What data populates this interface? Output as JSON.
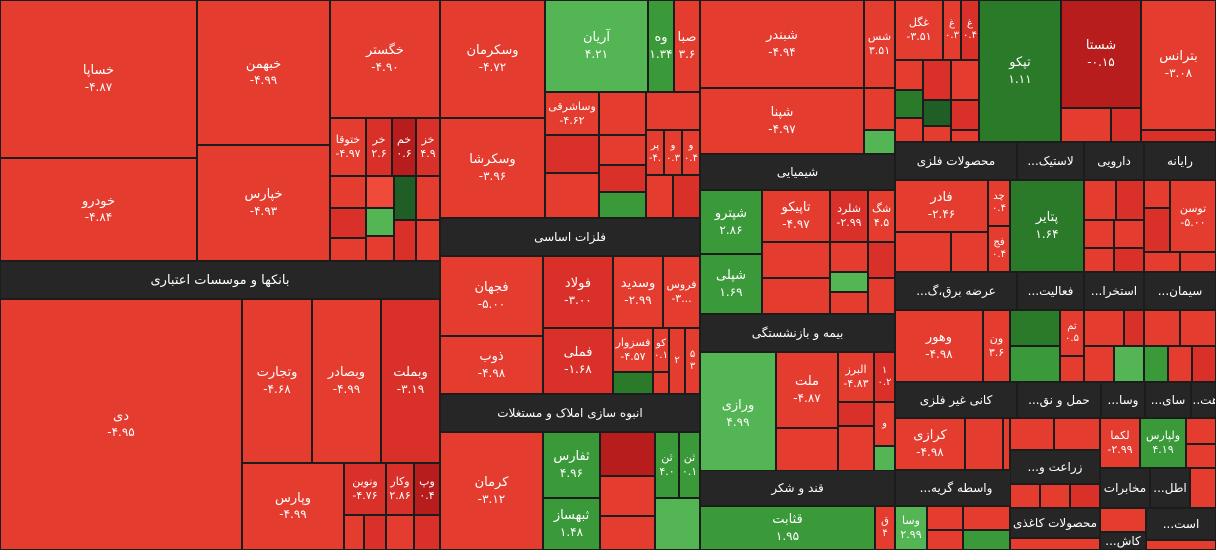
{
  "colors": {
    "red_strong": "#e53c30",
    "red_dark": "#b81d1d",
    "green": "#53b553",
    "green_dark": "#2a7a2a",
    "header_bg": "#262626"
  },
  "sectors": {
    "banks": "بانکها و موسسات اعتباری",
    "basic_metals": "فلزات اساسی",
    "construction": "انبوه سازی املاک و مستغلات",
    "chemical": "شیمیایی",
    "insurance": "بیمه و بازنشستگی",
    "sugar": "قند و شکر",
    "metal_products": "محصولات فلزی",
    "plastic": "لاستیک...",
    "pharma": "دارویی",
    "computer": "رایانه",
    "electricity": "عرضه برق،گ...",
    "activity": "فعالیت...",
    "extraction": "استخرا...",
    "cement": "سیمان...",
    "non_metal": "کانی غیر فلزی",
    "transport": "حمل و نق...",
    "wasa": "وسا...",
    "sai": "سای...",
    "hat": "هت...",
    "agriculture": "زراعت و...",
    "brokers": "واسطه گریه...",
    "telecom": "مخابرات",
    "atl": "اطل...",
    "paper": "محصولات کاغذی",
    "est": "است...",
    "kash": "کاش..."
  },
  "stocks": {
    "khesapa": {
      "s": "خساپا",
      "v": "-۴.۸۷"
    },
    "khodro": {
      "s": "خودرو",
      "v": "-۴.۸۴"
    },
    "khbahman": {
      "s": "خبهمن",
      "v": "-۴.۹۹"
    },
    "khpars": {
      "s": "خپارس",
      "v": "-۴.۹۳"
    },
    "khgostar": {
      "s": "خگستر",
      "v": "-۴.۹۰"
    },
    "khtoga": {
      "s": "ختوقا",
      "v": "-۴.۹۷"
    },
    "khar": {
      "s": "خر",
      "v": "۲.۶"
    },
    "kham": {
      "s": "خم",
      "v": "۰.۶"
    },
    "khaz": {
      "s": "خز",
      "v": "۴.۹"
    },
    "di": {
      "s": "دی",
      "v": "-۴.۹۵"
    },
    "vtejarat": {
      "s": "وتجارت",
      "v": "-۴.۶۸"
    },
    "vbsader": {
      "s": "وبصادر",
      "v": "-۴.۹۹"
    },
    "vbmellat": {
      "s": "وبملت",
      "v": "-۳.۱۹"
    },
    "vpars": {
      "s": "وپارس",
      "v": "-۴.۹۹"
    },
    "vnovin": {
      "s": "ونوین",
      "v": "-۴.۷۶"
    },
    "vkar": {
      "s": "وکار",
      "v": "۲.۸۶"
    },
    "vp": {
      "s": "وپ",
      "v": "۰.۴"
    },
    "vskerman": {
      "s": "وسکرمان",
      "v": "-۴.۷۲"
    },
    "vskersha": {
      "s": "وسکرشا",
      "v": "-۳.۹۶"
    },
    "aryan": {
      "s": "آریان",
      "v": "۴.۲۱"
    },
    "vh": {
      "s": "وه",
      "v": "۱.۳۴"
    },
    "saba": {
      "s": "صبا",
      "v": "۳.۶"
    },
    "vasharqi": {
      "s": "وساشرقی",
      "v": "-۴.۶۲"
    },
    "par": {
      "s": "پر",
      "v": "-۴."
    },
    "vo": {
      "s": "و",
      "v": "۰.۳"
    },
    "v4": {
      "s": "و",
      "v": "۰.۴"
    },
    "fjahan": {
      "s": "فجهان",
      "v": "-۵.۰۰"
    },
    "zob": {
      "s": "ذوب",
      "v": "-۴.۹۸"
    },
    "foolad": {
      "s": "فولاد",
      "v": "-۳.۰۰"
    },
    "vsadid": {
      "s": "وسدید",
      "v": "-۲.۹۹"
    },
    "fros": {
      "s": "فروس",
      "v": "-۳..."
    },
    "fmelli": {
      "s": "فملی",
      "v": "-۱.۶۸"
    },
    "fsozvar": {
      "s": "فسزوار",
      "v": "-۴.۵۷"
    },
    "ko": {
      "s": "کو",
      "v": "۰.۱"
    },
    "n2": {
      "s": "۲",
      "v": ""
    },
    "n5": {
      "s": "۵",
      "v": "۳"
    },
    "kerman": {
      "s": "کرمان",
      "v": "-۳.۱۲"
    },
    "thfars": {
      "s": "ثفارس",
      "v": "۴.۹۶"
    },
    "thabhsaz": {
      "s": "ثبهساز",
      "v": "۱.۴۸"
    },
    "thn1": {
      "s": "ثن",
      "v": "۴.۰"
    },
    "thn2": {
      "s": "ثن",
      "v": "۰.۱"
    },
    "shbandar": {
      "s": "شبندر",
      "v": "-۴.۹۴"
    },
    "shpana": {
      "s": "شپنا",
      "v": "-۴.۹۷"
    },
    "shs": {
      "s": "شس",
      "v": "۳.۵۱"
    },
    "ghgol": {
      "s": "غگل",
      "v": "-۳.۵۱"
    },
    "gh": {
      "s": "غ",
      "v": "۰.۳"
    },
    "gh2": {
      "s": "غ",
      "v": "۰.۴"
    },
    "tipco": {
      "s": "تپکو",
      "v": "۱.۱۱"
    },
    "shasta": {
      "s": "شستا",
      "v": "-۰.۱۵"
    },
    "btrans": {
      "s": "بترانس",
      "v": "-۳.۰۸"
    },
    "shpitro": {
      "s": "شپترو",
      "v": "۲.۸۶"
    },
    "shpli": {
      "s": "شپلی",
      "v": "۱.۶۹"
    },
    "tapico": {
      "s": "تاپیکو",
      "v": "-۴.۹۷"
    },
    "sharld": {
      "s": "شلرد",
      "v": "-۲.۹۹"
    },
    "shg": {
      "s": "شگ",
      "v": "۴.۵"
    },
    "vrazi": {
      "s": "ورازی",
      "v": "۴.۹۹"
    },
    "melat": {
      "s": "ملت",
      "v": "-۴.۸۷"
    },
    "alborz": {
      "s": "البرز",
      "v": "-۴.۸۳"
    },
    "n1": {
      "s": "۱",
      "v": "۰.۲"
    },
    "v_ins": {
      "s": "و",
      "v": ""
    },
    "ghnabet": {
      "s": "قثابت",
      "v": "۱.۹۵"
    },
    "gh_s": {
      "s": "ق",
      "v": "۴"
    },
    "vsa": {
      "s": "وسا",
      "v": "۲.۹۹"
    },
    "fader": {
      "s": "فادر",
      "v": "-۲.۴۶"
    },
    "chad": {
      "s": "چد",
      "v": "۰.۴"
    },
    "faj": {
      "s": "فج",
      "v": "۰.۴"
    },
    "ptayer": {
      "s": "پتایر",
      "v": "۱.۶۴"
    },
    "toosan": {
      "s": "توسن",
      "v": "-۵.۰۰"
    },
    "vhor": {
      "s": "وهور",
      "v": "-۴.۹۸"
    },
    "von": {
      "s": "ون",
      "v": "۳.۶"
    },
    "tm": {
      "s": "تم",
      "v": "۰.۵"
    },
    "krazi": {
      "s": "کرازی",
      "v": "-۴.۹۸"
    },
    "lakma": {
      "s": "لکما",
      "v": "-۲.۹۹"
    },
    "valpars": {
      "s": "ولپارس",
      "v": "۴.۱۹"
    }
  }
}
